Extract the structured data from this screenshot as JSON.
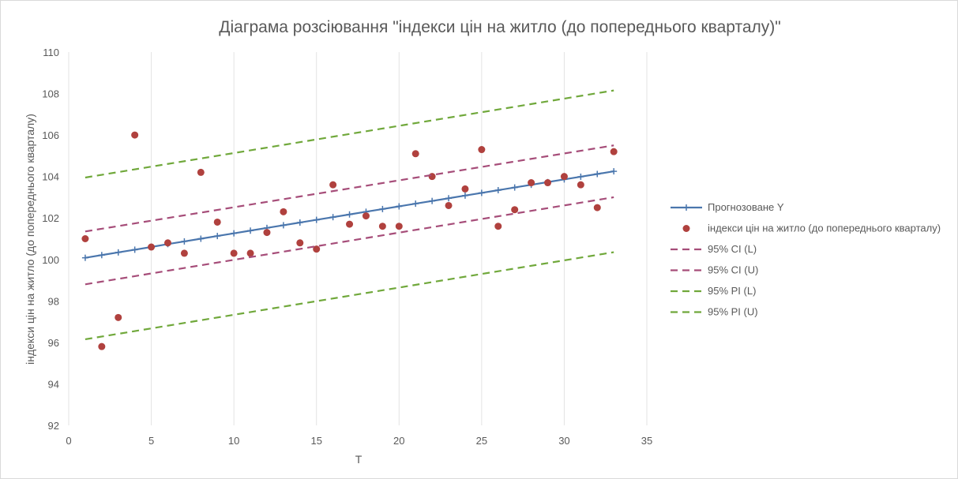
{
  "chart_data": {
    "type": "scatter",
    "title": "Діаграма розсіювання \"індекси цін на житло (до попереднього кварталу)\"",
    "xlabel": "T",
    "ylabel": "індекси цін на житло (до попереднього кварталу)",
    "xlim": [
      0,
      35
    ],
    "ylim": [
      92,
      110
    ],
    "xticks": [
      0,
      5,
      10,
      15,
      20,
      25,
      30,
      35
    ],
    "yticks": [
      92,
      94,
      96,
      98,
      100,
      102,
      104,
      106,
      108,
      110
    ],
    "grid": "vertical",
    "legend_position": "right",
    "x": [
      1,
      2,
      3,
      4,
      5,
      6,
      7,
      8,
      9,
      10,
      11,
      12,
      13,
      14,
      15,
      16,
      17,
      18,
      19,
      20,
      21,
      22,
      23,
      24,
      25,
      26,
      27,
      28,
      29,
      30,
      31,
      32,
      33
    ],
    "series": [
      {
        "name": "Прогнозоване Y",
        "kind": "line-marker",
        "color": "#4a76ad",
        "values": [
          100.08,
          100.21,
          100.34,
          100.47,
          100.6,
          100.74,
          100.87,
          101.0,
          101.13,
          101.26,
          101.39,
          101.52,
          101.65,
          101.78,
          101.91,
          102.04,
          102.17,
          102.3,
          102.43,
          102.56,
          102.69,
          102.82,
          102.95,
          103.08,
          103.21,
          103.34,
          103.47,
          103.6,
          103.73,
          103.86,
          103.99,
          104.12,
          104.25
        ]
      },
      {
        "name": "індекси цін на житло (до попереднього кварталу)",
        "kind": "points",
        "color": "#b0413e",
        "values": [
          101.0,
          95.8,
          97.2,
          106.0,
          100.6,
          100.8,
          100.3,
          104.2,
          101.8,
          100.3,
          100.3,
          101.3,
          102.3,
          100.8,
          100.5,
          103.6,
          101.7,
          102.1,
          101.6,
          101.6,
          105.1,
          104.0,
          102.6,
          103.4,
          105.3,
          101.6,
          102.4,
          103.7,
          103.7,
          104.0,
          103.6,
          102.5,
          105.2
        ]
      },
      {
        "name": "95% CI (L)",
        "kind": "dashed",
        "color": "#a64d79",
        "x": [
          1,
          33
        ],
        "values": [
          98.8,
          103.0
        ]
      },
      {
        "name": "95% CI (U)",
        "kind": "dashed",
        "color": "#a64d79",
        "x": [
          1,
          33
        ],
        "values": [
          101.35,
          105.5
        ]
      },
      {
        "name": "95% PI (L)",
        "kind": "dashed",
        "color": "#70a83b",
        "x": [
          1,
          33
        ],
        "values": [
          96.15,
          100.35
        ]
      },
      {
        "name": "95% PI (U)",
        "kind": "dashed",
        "color": "#70a83b",
        "x": [
          1,
          33
        ],
        "values": [
          103.95,
          108.15
        ]
      }
    ]
  }
}
